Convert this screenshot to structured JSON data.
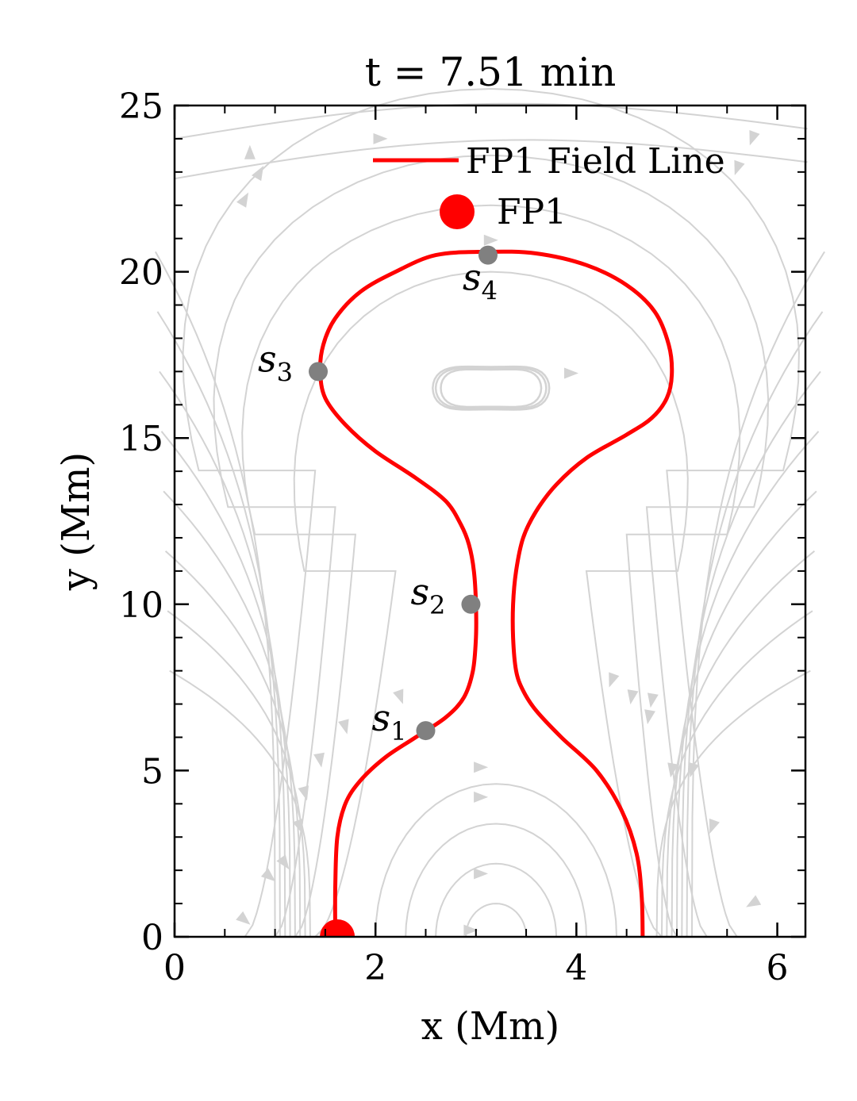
{
  "chart_data": {
    "type": "line",
    "title": "t = 7.51 min",
    "xlabel": "x (Mm)",
    "ylabel": "y (Mm)",
    "xlim": [
      0,
      6.28
    ],
    "ylim": [
      0,
      25
    ],
    "xticks": [
      0,
      2,
      4,
      6
    ],
    "yticks": [
      0,
      5,
      10,
      15,
      20,
      25
    ],
    "xtick_labels": [
      "0",
      "2",
      "4",
      "6"
    ],
    "ytick_labels": [
      "0",
      "5",
      "10",
      "15",
      "20",
      "25"
    ],
    "legend_position": "top-right",
    "legend": [
      {
        "label": "FP1 Field Line",
        "kind": "line",
        "color": "#ff0000"
      },
      {
        "label": "FP1",
        "kind": "marker",
        "color": "#ff0000"
      }
    ],
    "colors": {
      "field_line": "#ff0000",
      "streamlines": "#d3d3d3",
      "points": "#808080",
      "footpoint": "#ff0000"
    },
    "field_line": {
      "name": "FP1 Field Line",
      "x": [
        1.6,
        1.6,
        1.62,
        1.7,
        1.85,
        2.1,
        2.4,
        2.7,
        2.88,
        2.97,
        3.0,
        3.0,
        2.98,
        2.93,
        2.85,
        2.7,
        2.4,
        2.0,
        1.7,
        1.5,
        1.45,
        1.48,
        1.6,
        1.85,
        2.2,
        2.6,
        3.1,
        3.6,
        4.1,
        4.5,
        4.78,
        4.92,
        4.95,
        4.9,
        4.75,
        4.5,
        4.1,
        3.8,
        3.6,
        3.47,
        3.4,
        3.37,
        3.37,
        3.4,
        3.47,
        3.6,
        3.85,
        4.2,
        4.45,
        4.6,
        4.65,
        4.66
      ],
      "y": [
        0,
        1.5,
        3.0,
        4.0,
        4.7,
        5.4,
        6.0,
        6.6,
        7.2,
        8.0,
        9.0,
        10.0,
        11.0,
        11.8,
        12.4,
        13.1,
        13.8,
        14.6,
        15.4,
        16.2,
        17.0,
        17.8,
        18.6,
        19.4,
        20.0,
        20.5,
        20.6,
        20.55,
        20.2,
        19.6,
        18.8,
        17.8,
        16.9,
        16.2,
        15.6,
        15.1,
        14.4,
        13.6,
        12.8,
        12.0,
        11.0,
        10.0,
        9.0,
        8.0,
        7.4,
        6.8,
        6.0,
        5.0,
        3.8,
        2.5,
        1.2,
        0
      ]
    },
    "footpoint": {
      "label": "FP1",
      "x": 1.62,
      "y": 0
    },
    "points": [
      {
        "label": "s",
        "sub": "1",
        "x": 2.5,
        "y": 6.2
      },
      {
        "label": "s",
        "sub": "2",
        "x": 2.95,
        "y": 10.0
      },
      {
        "label": "s",
        "sub": "3",
        "x": 1.43,
        "y": 17.0
      },
      {
        "label": "s",
        "sub": "4",
        "x": 3.12,
        "y": 20.5
      }
    ]
  }
}
